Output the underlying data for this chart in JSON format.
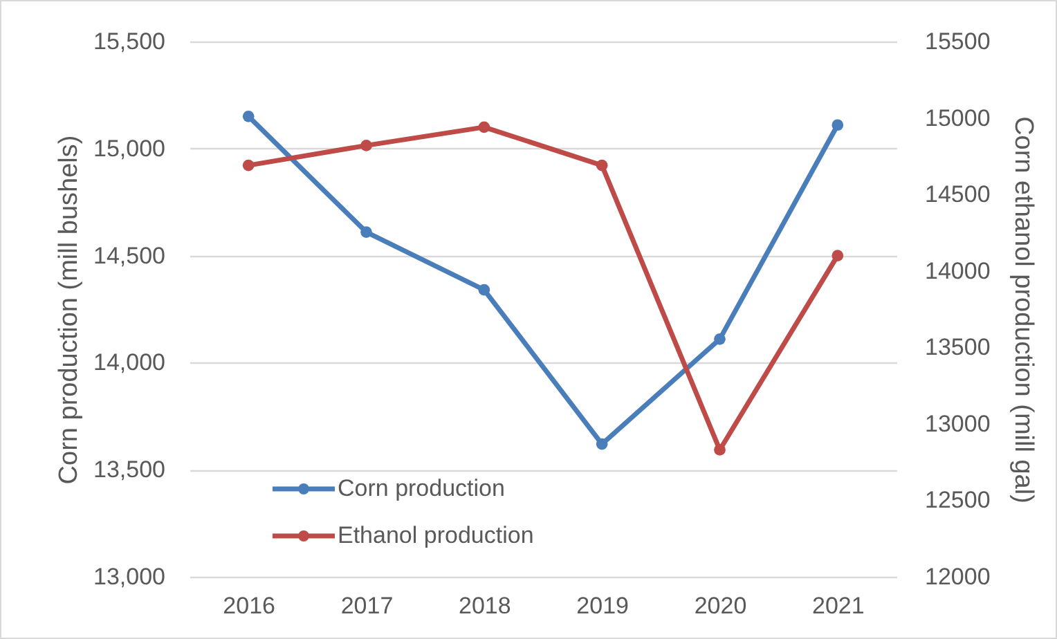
{
  "chart_data": {
    "type": "line",
    "categories": [
      "2016",
      "2017",
      "2018",
      "2019",
      "2020",
      "2021"
    ],
    "series": [
      {
        "name": "Corn production",
        "color": "#4a7ebb",
        "values": [
          15150,
          14610,
          14340,
          13620,
          14110,
          15110
        ]
      },
      {
        "name": "Ethanol production",
        "color": "#be4b48",
        "axis": "y2",
        "values": [
          14690,
          14820,
          14940,
          14690,
          12830,
          14100
        ]
      }
    ],
    "ylabel": "Corn production (mill bushels)",
    "y2label": "Corn ethanol production (mill gal)",
    "ylim": [
      13000,
      15500
    ],
    "yticks": [
      {
        "value": 13000,
        "label": "13,000"
      },
      {
        "value": 13500,
        "label": "13,500"
      },
      {
        "value": 14000,
        "label": "14,000"
      },
      {
        "value": 14500,
        "label": "14,500"
      },
      {
        "value": 15000,
        "label": "15,000"
      },
      {
        "value": 15500,
        "label": "15,500"
      }
    ],
    "y2lim": [
      12000,
      15500
    ],
    "y2ticks": [
      12000,
      12500,
      13000,
      13500,
      14000,
      14500,
      15000,
      15500
    ],
    "grid": "y",
    "legend": "bottom left",
    "marker": "circle",
    "line_style": "solid"
  }
}
